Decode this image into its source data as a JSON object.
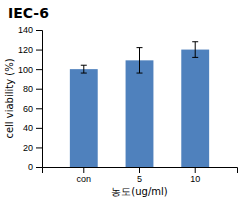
{
  "chart_data": {
    "type": "bar",
    "title": "IEC-6",
    "categories": [
      "con",
      "5",
      "10"
    ],
    "values": [
      100,
      109,
      120
    ],
    "errors": [
      4,
      13,
      8
    ],
    "color": "#4f81bd",
    "ylabel": "cell viability (%)",
    "xlabel": "농도(ug/ml)",
    "ylim": [
      0,
      140
    ],
    "yticks": [
      0,
      20,
      40,
      60,
      80,
      100,
      120,
      140
    ],
    "grid": false
  }
}
